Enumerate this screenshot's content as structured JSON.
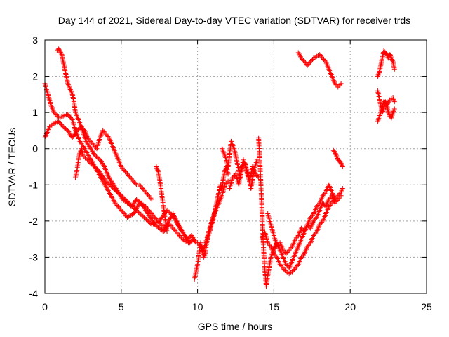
{
  "chart_data": {
    "type": "scatter",
    "title": "Day 144 of 2021, Sidereal Day-to-day VTEC variation (SDTVAR) for receiver trds",
    "xlabel": "GPS time / hours",
    "ylabel": "SDTVAR / TECUs",
    "xlim": [
      0,
      25
    ],
    "ylim": [
      -4,
      3
    ],
    "xticks": [
      0,
      5,
      10,
      15,
      20,
      25
    ],
    "yticks": [
      -4,
      -3,
      -2,
      -1,
      0,
      1,
      2,
      3
    ],
    "xtick_labels": [
      "0",
      "5",
      "10",
      "15",
      "20",
      "25"
    ],
    "ytick_labels": [
      "-4",
      "-3",
      "-2",
      "-1",
      "0",
      "1",
      "2",
      "3"
    ],
    "grid": true,
    "marker": "+",
    "color": "#ff0000",
    "series": [
      {
        "x": [
          0.0,
          0.2,
          0.4,
          0.6,
          0.8,
          1.0,
          1.2,
          1.5,
          1.8,
          2.0,
          2.3,
          2.6,
          3.0,
          3.4,
          3.8,
          4.2,
          4.6,
          5.0,
          5.4,
          5.8,
          6.2,
          6.6,
          7.0,
          7.4,
          7.8,
          8.2,
          8.6,
          9.0,
          9.4,
          9.8
        ],
        "y": [
          1.8,
          1.5,
          1.2,
          1.0,
          0.9,
          0.85,
          0.9,
          0.95,
          0.8,
          0.5,
          0.2,
          0.0,
          -0.3,
          -0.6,
          -0.9,
          -1.2,
          -1.5,
          -1.7,
          -1.9,
          -1.8,
          -1.5,
          -1.6,
          -1.8,
          -2.0,
          -2.2,
          -2.1,
          -2.3,
          -2.5,
          -2.6,
          -2.5
        ]
      },
      {
        "x": [
          0.0,
          0.3,
          0.6,
          0.9,
          1.2,
          1.5,
          1.8,
          2.1,
          2.4,
          2.7,
          3.0,
          3.3,
          3.6,
          3.9,
          4.2,
          4.5,
          4.8,
          5.1,
          5.4,
          5.7,
          6.0,
          6.3,
          6.6,
          6.9,
          7.2,
          7.5,
          7.8,
          8.1,
          8.4,
          8.7,
          9.0,
          9.3,
          9.6,
          9.9
        ],
        "y": [
          0.3,
          0.6,
          0.7,
          0.75,
          0.6,
          0.5,
          0.3,
          0.5,
          0.6,
          0.2,
          0.0,
          -0.2,
          -0.3,
          -0.5,
          -0.8,
          -1.0,
          -1.2,
          -1.4,
          -1.5,
          -1.6,
          -1.4,
          -1.5,
          -1.7,
          -1.9,
          -2.1,
          -2.2,
          -2.3,
          -2.0,
          -1.8,
          -2.1,
          -2.3,
          -2.5,
          -2.4,
          -2.6
        ]
      },
      {
        "x": [
          0.8,
          0.9,
          1.0,
          1.1,
          1.2,
          1.3,
          1.4,
          1.5,
          1.6,
          1.7,
          1.8,
          1.9,
          2.0,
          2.2,
          2.4,
          2.6,
          2.8,
          3.0,
          3.2,
          3.4,
          3.6,
          3.8,
          4.0,
          4.2,
          4.4,
          4.6,
          4.8,
          5.0,
          5.2,
          5.4,
          5.6,
          5.8,
          6.0,
          6.2,
          6.4,
          6.6,
          6.8,
          7.0
        ],
        "y": [
          2.7,
          2.75,
          2.7,
          2.6,
          2.4,
          2.2,
          2.0,
          1.8,
          1.7,
          1.6,
          1.5,
          1.3,
          1.0,
          0.8,
          0.6,
          0.5,
          0.3,
          0.2,
          0.1,
          0.0,
          0.3,
          0.5,
          0.4,
          0.3,
          0.1,
          -0.1,
          -0.3,
          -0.5,
          -0.6,
          -0.7,
          -0.8,
          -0.9,
          -1.0,
          -1.0,
          -1.1,
          -1.2,
          -1.3,
          -1.4
        ]
      },
      {
        "x": [
          2.0,
          2.1,
          2.2,
          2.3,
          2.4,
          2.5,
          3.0,
          3.5,
          4.0,
          4.5,
          5.0,
          5.5,
          6.0,
          6.5,
          7.0,
          7.5,
          8.0,
          8.5,
          9.0,
          9.5
        ],
        "y": [
          -0.8,
          -0.6,
          -0.3,
          -0.1,
          0.0,
          -0.2,
          -0.4,
          -0.6,
          -0.9,
          -1.1,
          -1.3,
          -1.5,
          -1.7,
          -1.9,
          -2.1,
          -2.0,
          -1.7,
          -1.9,
          -2.3,
          -2.6
        ]
      },
      {
        "x": [
          7.3,
          7.4,
          7.5,
          7.6,
          7.7,
          7.8,
          7.9,
          8.0
        ],
        "y": [
          -0.5,
          -0.6,
          -0.8,
          -1.1,
          -1.4,
          -1.7,
          -2.0,
          -2.3
        ]
      },
      {
        "x": [
          9.8,
          9.9,
          10.0,
          10.1,
          10.2,
          10.3,
          10.4,
          10.5,
          10.6,
          10.7,
          10.8,
          10.9,
          11.0,
          11.1,
          11.2,
          11.3,
          11.4,
          11.5,
          11.6,
          11.7,
          11.8,
          11.9,
          12.0
        ],
        "y": [
          -3.6,
          -3.4,
          -3.2,
          -2.9,
          -2.6,
          -2.8,
          -3.0,
          -2.9,
          -2.6,
          -2.4,
          -2.3,
          -2.1,
          -2.0,
          -1.8,
          -1.6,
          -1.4,
          -1.2,
          -1.0,
          -1.1,
          -0.8,
          -0.6,
          -0.5,
          -0.7
        ]
      },
      {
        "x": [
          10.0,
          10.2,
          10.4,
          10.6,
          10.8,
          11.0,
          11.2,
          11.4,
          11.6,
          11.8,
          12.0
        ],
        "y": [
          -2.6,
          -2.7,
          -2.8,
          -2.5,
          -2.2,
          -1.9,
          -1.7,
          -1.5,
          -1.3,
          -1.0,
          -0.9
        ]
      },
      {
        "x": [
          11.6,
          11.8,
          12.0,
          12.2,
          12.4,
          12.6,
          12.8,
          13.0,
          13.2,
          13.4,
          13.6,
          13.8,
          14.0
        ],
        "y": [
          0.0,
          -0.2,
          -0.5,
          0.2,
          0.0,
          -0.4,
          -0.8,
          -0.3,
          -0.6,
          -0.9,
          -0.5,
          -0.7,
          -0.8
        ]
      },
      {
        "x": [
          12.1,
          12.3,
          12.5,
          12.7,
          12.9,
          13.1,
          13.3,
          13.5,
          13.7,
          13.9
        ],
        "y": [
          -1.1,
          -0.8,
          -0.7,
          -1.0,
          -0.5,
          -0.4,
          -0.7,
          -1.1,
          -0.6,
          -0.3
        ]
      },
      {
        "x": [
          14.0,
          14.1,
          14.2,
          14.3,
          14.4,
          14.5,
          14.6,
          14.8,
          15.0,
          15.2,
          15.4,
          15.6,
          15.8,
          16.0,
          16.2,
          16.4,
          16.6,
          16.8,
          17.0,
          17.2,
          17.4,
          17.6,
          17.8,
          18.0,
          18.2,
          18.4,
          18.6,
          18.8,
          19.0,
          19.2,
          19.4
        ],
        "y": [
          0.3,
          -0.5,
          -1.5,
          -2.6,
          -3.3,
          -3.8,
          -3.5,
          -3.0,
          -2.8,
          -2.6,
          -2.8,
          -3.0,
          -3.2,
          -3.3,
          -3.1,
          -2.9,
          -2.7,
          -2.5,
          -2.3,
          -2.1,
          -2.2,
          -2.0,
          -1.9,
          -1.7,
          -1.5,
          -1.6,
          -1.4,
          -1.3,
          -1.5,
          -1.4,
          -1.3
        ]
      },
      {
        "x": [
          14.2,
          14.4,
          14.6,
          14.8,
          15.0,
          15.2,
          15.4,
          15.6,
          15.8,
          16.0,
          16.2,
          16.4,
          16.6,
          16.8,
          17.0,
          17.2,
          17.4,
          17.6,
          17.8,
          18.0,
          18.2,
          18.4,
          18.6,
          18.8,
          19.0,
          19.2,
          19.4,
          19.5
        ],
        "y": [
          -2.5,
          -2.3,
          -2.6,
          -2.7,
          -2.9,
          -3.0,
          -3.2,
          -3.3,
          -3.4,
          -3.45,
          -3.4,
          -3.3,
          -3.2,
          -3.0,
          -2.9,
          -2.7,
          -2.6,
          -2.4,
          -2.3,
          -2.1,
          -2.0,
          -1.8,
          -1.6,
          -1.5,
          -1.4,
          -1.3,
          -1.2,
          -1.1
        ]
      },
      {
        "x": [
          14.6,
          14.8,
          15.0,
          15.2,
          15.4,
          15.6,
          15.8,
          16.0,
          16.2,
          16.4,
          16.6,
          16.8,
          17.0,
          17.2,
          17.4,
          17.6,
          17.8,
          18.0,
          18.2,
          18.4,
          18.6,
          18.8,
          19.0
        ],
        "y": [
          -1.8,
          -2.1,
          -2.4,
          -2.7,
          -2.6,
          -2.8,
          -2.9,
          -2.8,
          -2.7,
          -2.5,
          -2.4,
          -2.2,
          -2.3,
          -2.1,
          -1.9,
          -1.8,
          -1.6,
          -1.5,
          -1.3,
          -1.2,
          -1.0,
          -1.2,
          -1.4
        ]
      },
      {
        "x": [
          16.6,
          16.8,
          17.0,
          17.2,
          17.4,
          17.6,
          17.8,
          18.0,
          18.2,
          18.4,
          18.6,
          18.8,
          19.0,
          19.2,
          19.4
        ],
        "y": [
          2.65,
          2.5,
          2.4,
          2.3,
          2.4,
          2.5,
          2.55,
          2.6,
          2.5,
          2.4,
          2.2,
          2.0,
          1.8,
          1.7,
          1.8
        ]
      },
      {
        "x": [
          18.9,
          19.0,
          19.1,
          19.2,
          19.3,
          19.4,
          19.5
        ],
        "y": [
          -0.05,
          -0.1,
          -0.2,
          -0.3,
          -0.35,
          -0.4,
          -0.5
        ]
      },
      {
        "x": [
          21.8,
          21.9,
          22.0,
          22.1,
          22.2,
          22.3,
          22.4,
          22.5,
          22.6,
          22.7,
          22.8,
          22.9
        ],
        "y": [
          2.0,
          2.1,
          2.3,
          2.5,
          2.7,
          2.65,
          2.6,
          2.5,
          2.6,
          2.5,
          2.4,
          2.2
        ]
      },
      {
        "x": [
          21.8,
          21.9,
          22.0,
          22.1,
          22.2,
          22.3,
          22.4,
          22.5,
          22.6,
          22.7,
          22.8,
          22.9
        ],
        "y": [
          1.6,
          1.4,
          1.2,
          1.0,
          1.1,
          1.3,
          1.2,
          1.0,
          0.9,
          0.85,
          1.0,
          1.1
        ]
      },
      {
        "x": [
          21.8,
          22.0,
          22.2,
          22.4,
          22.6,
          22.8,
          22.9
        ],
        "y": [
          0.75,
          1.0,
          1.3,
          1.2,
          1.35,
          1.4,
          1.3
        ]
      }
    ]
  }
}
